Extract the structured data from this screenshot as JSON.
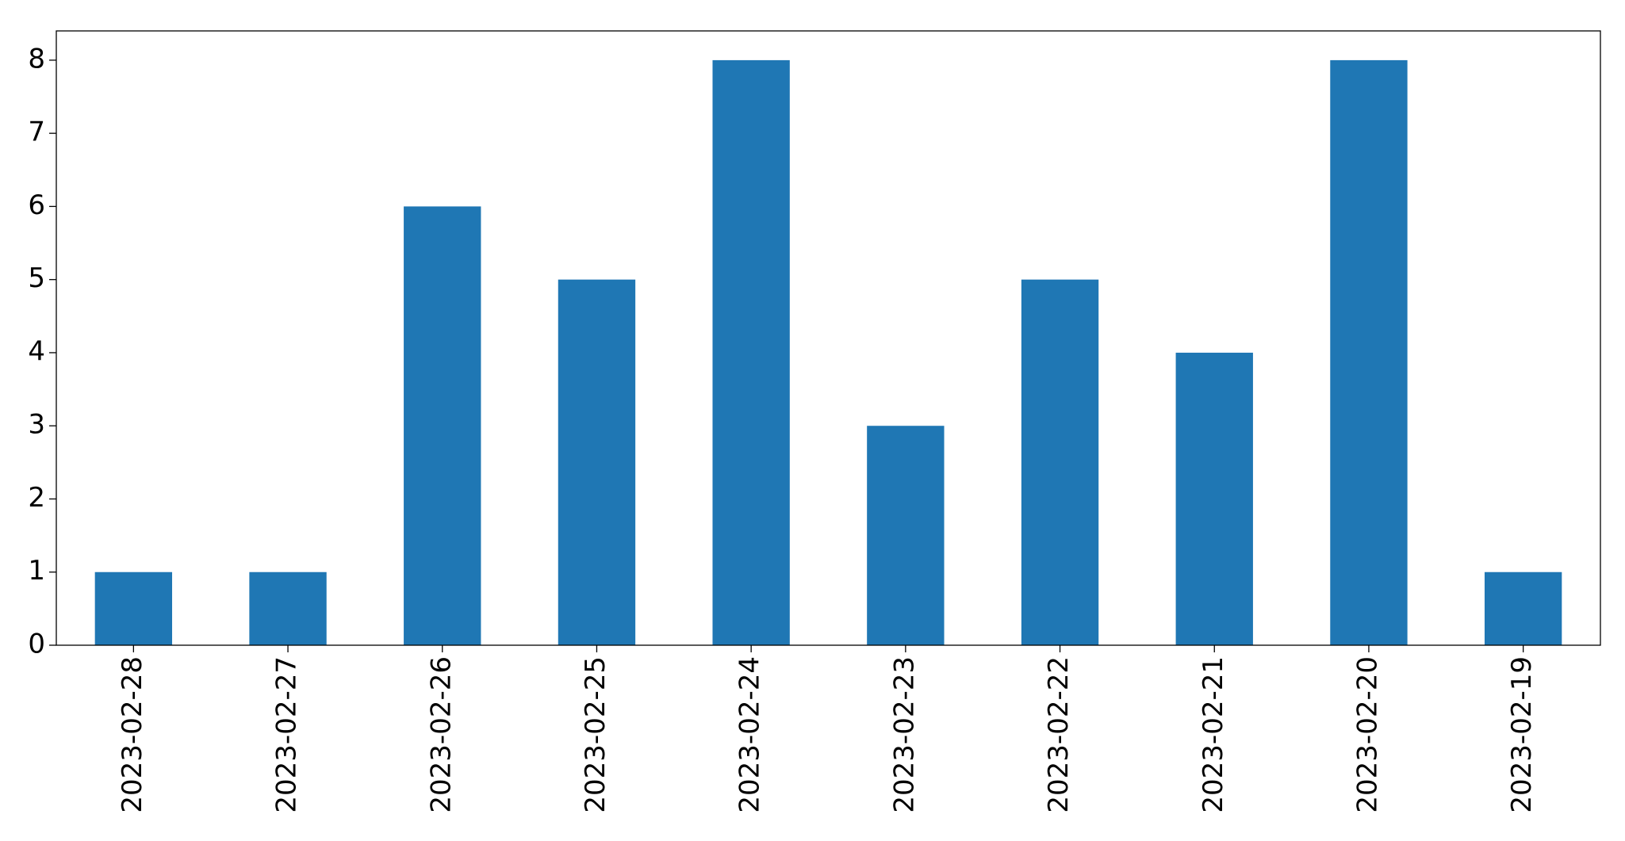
{
  "chart_data": {
    "type": "bar",
    "categories": [
      "2023-02-28",
      "2023-02-27",
      "2023-02-26",
      "2023-02-25",
      "2023-02-24",
      "2023-02-23",
      "2023-02-22",
      "2023-02-21",
      "2023-02-20",
      "2023-02-19"
    ],
    "values": [
      1,
      1,
      6,
      5,
      8,
      3,
      5,
      4,
      8,
      1
    ],
    "color": "#1f77b4",
    "ylim": [
      0,
      8.4
    ],
    "yticks": [
      0,
      1,
      2,
      3,
      4,
      5,
      6,
      7,
      8
    ],
    "grid": false
  }
}
